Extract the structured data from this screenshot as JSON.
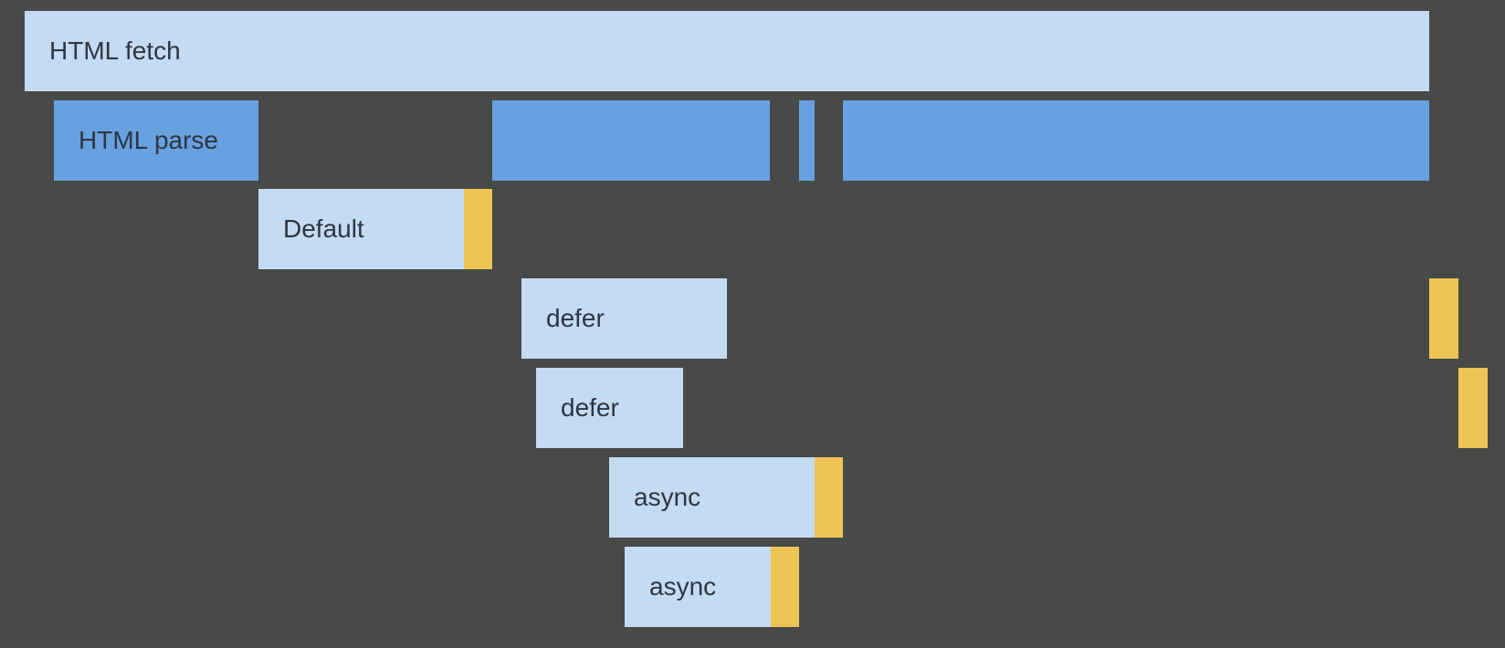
{
  "diagram": {
    "rows": [
      {
        "label": "HTML fetch",
        "kind": "fetch"
      },
      {
        "label": "HTML parse",
        "kind": "parse"
      },
      {
        "label": "Default",
        "kind": "script-fetch",
        "exec_immediately": true
      },
      {
        "label": "defer",
        "kind": "script-fetch",
        "exec_after_parse": true
      },
      {
        "label": "defer",
        "kind": "script-fetch",
        "exec_after_parse": true
      },
      {
        "label": "async",
        "kind": "script-fetch",
        "exec_immediately": true
      },
      {
        "label": "async",
        "kind": "script-fetch",
        "exec_immediately": true
      }
    ],
    "colors": {
      "background": "#474a47",
      "fetch": "#c4dbf4",
      "parse": "#67a1e0",
      "execute": "#eec455",
      "text": "#2f3540"
    }
  }
}
